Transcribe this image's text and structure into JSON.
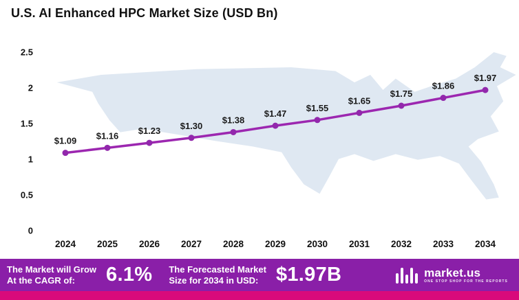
{
  "title": "U.S. AI Enhanced HPC Market Size (USD Bn)",
  "chart_data": {
    "type": "line",
    "title": "U.S. AI Enhanced HPC Market Size (USD Bn)",
    "categories": [
      "2024",
      "2025",
      "2026",
      "2027",
      "2028",
      "2029",
      "2030",
      "2031",
      "2032",
      "2033",
      "2034"
    ],
    "values": [
      1.09,
      1.16,
      1.23,
      1.3,
      1.38,
      1.47,
      1.55,
      1.65,
      1.75,
      1.86,
      1.97
    ],
    "point_labels": [
      "$1.09",
      "$1.16",
      "$1.23",
      "$1.30",
      "$1.38",
      "$1.47",
      "$1.55",
      "$1.65",
      "$1.75",
      "$1.86",
      "$1.97"
    ],
    "xlabel": "",
    "ylabel": "",
    "ylim": [
      0,
      2.5
    ],
    "yticks": [
      0,
      0.5,
      1,
      1.5,
      2,
      2.5
    ],
    "ytick_labels": [
      "0",
      "0.5",
      "1",
      "1.5",
      "2",
      "2.5"
    ],
    "grid": false,
    "legend": "none",
    "marker": "circle"
  },
  "footer": {
    "cagr_label_line1": "The Market will Grow",
    "cagr_label_line2": "At the CAGR of:",
    "cagr_value": "6.1%",
    "forecast_label_line1": "The Forecasted Market",
    "forecast_label_line2": "Size for 2034 in USD:",
    "forecast_value": "$1.97B",
    "brand": "market.us",
    "brand_tagline": "One Stop Shop For The Reports"
  },
  "colors": {
    "line": "#9C27B0",
    "marker": "#9228AC",
    "label_text": "#1a1a1a",
    "axis_text": "#111111",
    "map_fill": "#dfe8f2",
    "footer_bg": "#8A1FA8",
    "strip_bg": "#D90A7B",
    "footer_text": "#ffffff"
  }
}
